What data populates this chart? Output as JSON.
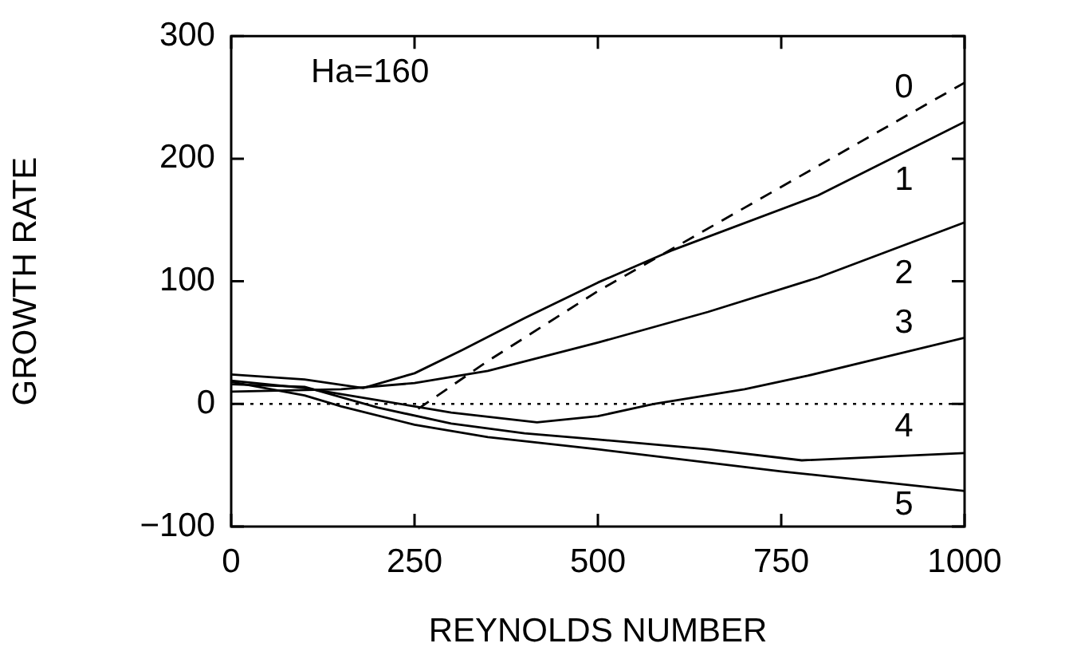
{
  "chart_data": {
    "type": "line",
    "xlabel": "REYNOLDS NUMBER",
    "ylabel": "GROWTH RATE",
    "xlim": [
      0,
      1000
    ],
    "xticks": [
      0,
      250,
      500,
      750,
      1000
    ],
    "ylim": [
      -100,
      300
    ],
    "yticks": [
      {
        "value": -100,
        "label": "−100"
      },
      0,
      100,
      200,
      300
    ],
    "grid": false,
    "legend": "right",
    "marker": "none",
    "annotations": [
      "Ha=160"
    ],
    "ref_lines": [
      {
        "axis": "y",
        "value": 0,
        "line_style": "dotted",
        "color": "#000000"
      }
    ],
    "series": [
      {
        "name": "0",
        "color": "#000000",
        "line_style": "dashed",
        "x": [
          255,
          350,
          500,
          1000
        ],
        "values": [
          -4,
          35,
          92,
          262
        ]
      },
      {
        "name": "1",
        "color": "#000000",
        "x": [
          0,
          100,
          180,
          250,
          315,
          400,
          500,
          600,
          800,
          1000
        ],
        "values": [
          24,
          20,
          13,
          25,
          44,
          70,
          99,
          125,
          170,
          230
        ]
      },
      {
        "name": "2",
        "color": "#000000",
        "x": [
          0,
          150,
          250,
          350,
          500,
          650,
          800,
          1000
        ],
        "values": [
          10,
          12,
          17,
          27,
          50,
          75,
          103,
          148
        ]
      },
      {
        "name": "3",
        "color": "#000000",
        "x": [
          0,
          100,
          200,
          300,
          417,
          500,
          576,
          700,
          786,
          1000
        ],
        "values": [
          19,
          13,
          3,
          -7,
          -15,
          -10,
          0,
          12,
          23,
          54
        ]
      },
      {
        "name": "4",
        "color": "#000000",
        "x": [
          0,
          100,
          200,
          300,
          400,
          500,
          650,
          778,
          1000
        ],
        "values": [
          16,
          14,
          -3,
          -16,
          -24,
          -29,
          -37,
          -46,
          -40
        ]
      },
      {
        "name": "5",
        "color": "#000000",
        "x": [
          0,
          100,
          150,
          250,
          350,
          500,
          750,
          1000
        ],
        "values": [
          18,
          7,
          -2,
          -17,
          -27,
          -37,
          -55,
          -71
        ]
      }
    ]
  }
}
